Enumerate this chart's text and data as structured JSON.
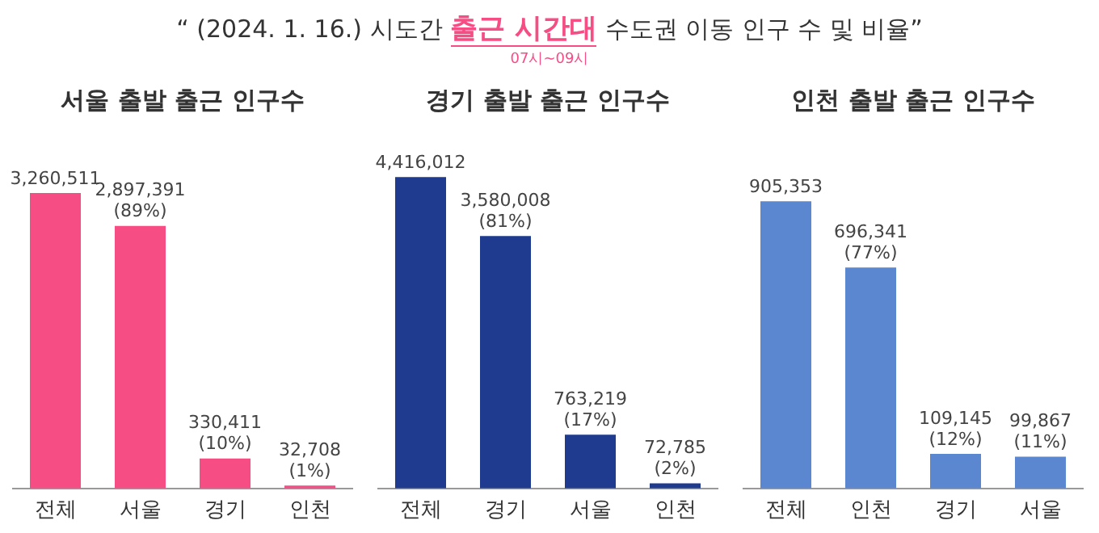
{
  "chart_data": [
    {
      "type": "bar",
      "title": "서울 출발 출근 인구수",
      "annotations": [
        "“ (2024. 1. 16.) 시도간",
        "출근 시간대",
        "수도권 이동 인구 수 및 비율”",
        "07시~09시"
      ],
      "categories": [
        "전체",
        "서울",
        "경기",
        "인천"
      ],
      "values": [
        3260511,
        2897391,
        330411,
        32708
      ],
      "color": "#f54d84",
      "value_labels": [
        "3,260,511",
        "2,897,391\n(89%)",
        "330,411\n(10%)",
        "32,708\n(1%)"
      ],
      "grid": false,
      "legend": false
    },
    {
      "type": "bar",
      "title": "경기 출발 출근 인구수",
      "categories": [
        "전체",
        "경기",
        "서울",
        "인천"
      ],
      "values": [
        4416012,
        3580008,
        763219,
        72785
      ],
      "color": "#1f3b8f",
      "value_labels": [
        "4,416,012",
        "3,580,008\n(81%)",
        "763,219\n(17%)",
        "72,785\n(2%)"
      ],
      "grid": false,
      "legend": false
    },
    {
      "type": "bar",
      "title": "인천 출발 출근 인구수",
      "categories": [
        "전체",
        "인천",
        "경기",
        "서울"
      ],
      "values": [
        905353,
        696341,
        109145,
        99867
      ],
      "color": "#5b87d0",
      "value_labels": [
        "905,353",
        "696,341\n(77%)",
        "109,145\n(12%)",
        "99,867\n(11%)"
      ],
      "grid": false,
      "legend": false
    }
  ]
}
